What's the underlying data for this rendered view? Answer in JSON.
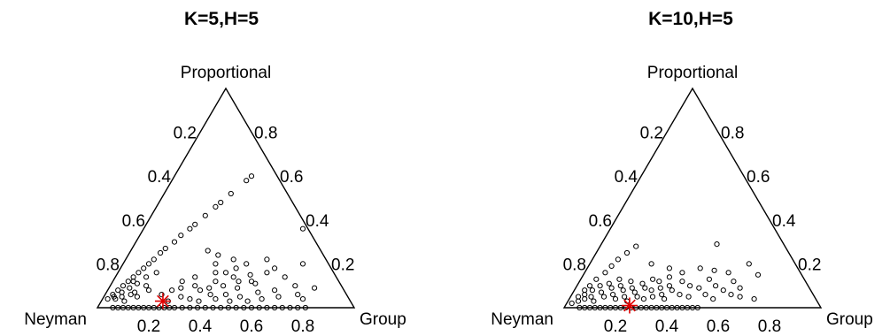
{
  "chart_data": [
    {
      "type": "scatter",
      "subtype": "ternary",
      "title": "K=5,H=5",
      "vertices": {
        "left": "Neyman",
        "top": "Proportional",
        "right": "Group"
      },
      "left_edge_ticks": [
        "0.2",
        "0.4",
        "0.6",
        "0.8"
      ],
      "right_edge_ticks": [
        "0.8",
        "0.6",
        "0.4",
        "0.2"
      ],
      "bottom_edge_ticks": [
        "0.2",
        "0.4",
        "0.6",
        "0.8"
      ],
      "points": [
        [
          0.02,
          0.04
        ],
        [
          0.03,
          0.06
        ],
        [
          0.04,
          0.08
        ],
        [
          0.05,
          0.1
        ],
        [
          0.06,
          0.12
        ],
        [
          0.07,
          0.14
        ],
        [
          0.08,
          0.16
        ],
        [
          0.09,
          0.18
        ],
        [
          0.1,
          0.2
        ],
        [
          0.11,
          0.22
        ],
        [
          0.12,
          0.25
        ],
        [
          0.13,
          0.27
        ],
        [
          0.15,
          0.3
        ],
        [
          0.16,
          0.33
        ],
        [
          0.18,
          0.36
        ],
        [
          0.19,
          0.38
        ],
        [
          0.21,
          0.42
        ],
        [
          0.23,
          0.46
        ],
        [
          0.24,
          0.48
        ],
        [
          0.26,
          0.52
        ],
        [
          0.29,
          0.58
        ],
        [
          0.3,
          0.6
        ],
        [
          0.04,
          0.05
        ],
        [
          0.05,
          0.04
        ],
        [
          0.06,
          0.07
        ],
        [
          0.07,
          0.05
        ],
        [
          0.08,
          0.09
        ],
        [
          0.09,
          0.03
        ],
        [
          0.1,
          0.11
        ],
        [
          0.11,
          0.07
        ],
        [
          0.12,
          0.14
        ],
        [
          0.13,
          0.05
        ],
        [
          0.14,
          0.1
        ],
        [
          0.15,
          0.16
        ],
        [
          0.16,
          0.08
        ],
        [
          0.08,
          0.12
        ],
        [
          0.1,
          0.06
        ],
        [
          0.06,
          0.0
        ],
        [
          0.08,
          0.0
        ],
        [
          0.1,
          0.0
        ],
        [
          0.12,
          0.0
        ],
        [
          0.14,
          0.0
        ],
        [
          0.16,
          0.0
        ],
        [
          0.18,
          0.0
        ],
        [
          0.2,
          0.0
        ],
        [
          0.22,
          0.0
        ],
        [
          0.24,
          0.0
        ],
        [
          0.26,
          0.0
        ],
        [
          0.28,
          0.0
        ],
        [
          0.3,
          0.0
        ],
        [
          0.33,
          0.0
        ],
        [
          0.36,
          0.0
        ],
        [
          0.39,
          0.0
        ],
        [
          0.42,
          0.0
        ],
        [
          0.45,
          0.0
        ],
        [
          0.48,
          0.0
        ],
        [
          0.51,
          0.0
        ],
        [
          0.54,
          0.0
        ],
        [
          0.57,
          0.0
        ],
        [
          0.6,
          0.0
        ],
        [
          0.63,
          0.0
        ],
        [
          0.66,
          0.0
        ],
        [
          0.69,
          0.0
        ],
        [
          0.72,
          0.0
        ],
        [
          0.75,
          0.0
        ],
        [
          0.78,
          0.0
        ],
        [
          0.81,
          0.0
        ],
        [
          0.3,
          0.26
        ],
        [
          0.35,
          0.24
        ],
        [
          0.42,
          0.22
        ],
        [
          0.48,
          0.2
        ],
        [
          0.62,
          0.36
        ],
        [
          0.7,
          0.2
        ],
        [
          0.38,
          0.16
        ],
        [
          0.45,
          0.18
        ],
        [
          0.52,
          0.15
        ],
        [
          0.55,
          0.22
        ],
        [
          0.6,
          0.18
        ],
        [
          0.27,
          0.12
        ],
        [
          0.33,
          0.1
        ],
        [
          0.36,
          0.08
        ],
        [
          0.4,
          0.12
        ],
        [
          0.44,
          0.1
        ],
        [
          0.47,
          0.06
        ],
        [
          0.5,
          0.09
        ],
        [
          0.53,
          0.05
        ],
        [
          0.56,
          0.11
        ],
        [
          0.59,
          0.07
        ],
        [
          0.62,
          0.04
        ],
        [
          0.65,
          0.08
        ],
        [
          0.68,
          0.05
        ],
        [
          0.72,
          0.1
        ],
        [
          0.75,
          0.06
        ],
        [
          0.78,
          0.04
        ],
        [
          0.8,
          0.09
        ],
        [
          0.3,
          0.05
        ],
        [
          0.34,
          0.04
        ],
        [
          0.38,
          0.03
        ],
        [
          0.41,
          0.06
        ],
        [
          0.5,
          0.03
        ],
        [
          0.57,
          0.03
        ],
        [
          0.22,
          0.06
        ],
        [
          0.25,
          0.08
        ],
        [
          0.28,
          0.09
        ],
        [
          0.31,
          0.14
        ],
        [
          0.46,
          0.14
        ],
        [
          0.54,
          0.12
        ],
        [
          0.36,
          0.2
        ],
        [
          0.42,
          0.16
        ],
        [
          0.66,
          0.14
        ],
        [
          0.58,
          0.16
        ],
        [
          0.49,
          0.12
        ],
        [
          0.39,
          0.09
        ],
        [
          0.26,
          0.03
        ],
        [
          0.44,
          0.04
        ]
      ],
      "star": [
        0.24,
        0.03
      ],
      "star_color": "#e00000"
    },
    {
      "type": "scatter",
      "subtype": "ternary",
      "title": "K=10,H=5",
      "vertices": {
        "left": "Neyman",
        "top": "Proportional",
        "right": "Group"
      },
      "left_edge_ticks": [
        "0.2",
        "0.4",
        "0.6",
        "0.8"
      ],
      "right_edge_ticks": [
        "0.8",
        "0.6",
        "0.4",
        "0.2"
      ],
      "bottom_edge_ticks": [
        "0.2",
        "0.4",
        "0.6",
        "0.8"
      ],
      "points": [
        [
          0.02,
          0.02
        ],
        [
          0.03,
          0.05
        ],
        [
          0.04,
          0.08
        ],
        [
          0.05,
          0.1
        ],
        [
          0.06,
          0.13
        ],
        [
          0.08,
          0.16
        ],
        [
          0.09,
          0.19
        ],
        [
          0.1,
          0.22
        ],
        [
          0.12,
          0.25
        ],
        [
          0.14,
          0.28
        ],
        [
          0.04,
          0.03
        ],
        [
          0.05,
          0.06
        ],
        [
          0.06,
          0.04
        ],
        [
          0.07,
          0.08
        ],
        [
          0.08,
          0.05
        ],
        [
          0.09,
          0.1
        ],
        [
          0.1,
          0.03
        ],
        [
          0.11,
          0.07
        ],
        [
          0.12,
          0.11
        ],
        [
          0.13,
          0.05
        ],
        [
          0.14,
          0.09
        ],
        [
          0.15,
          0.13
        ],
        [
          0.16,
          0.06
        ],
        [
          0.17,
          0.1
        ],
        [
          0.18,
          0.04
        ],
        [
          0.19,
          0.08
        ],
        [
          0.2,
          0.12
        ],
        [
          0.21,
          0.05
        ],
        [
          0.22,
          0.09
        ],
        [
          0.23,
          0.03
        ],
        [
          0.24,
          0.07
        ],
        [
          0.25,
          0.11
        ],
        [
          0.26,
          0.05
        ],
        [
          0.27,
          0.09
        ],
        [
          0.28,
          0.13
        ],
        [
          0.29,
          0.04
        ],
        [
          0.3,
          0.08
        ],
        [
          0.31,
          0.12
        ],
        [
          0.32,
          0.05
        ],
        [
          0.33,
          0.09
        ],
        [
          0.34,
          0.14
        ],
        [
          0.35,
          0.06
        ],
        [
          0.36,
          0.1
        ],
        [
          0.37,
          0.04
        ],
        [
          0.38,
          0.08
        ],
        [
          0.4,
          0.12
        ],
        [
          0.42,
          0.06
        ],
        [
          0.44,
          0.1
        ],
        [
          0.46,
          0.05
        ],
        [
          0.48,
          0.09
        ],
        [
          0.5,
          0.13
        ],
        [
          0.52,
          0.06
        ],
        [
          0.54,
          0.1
        ],
        [
          0.56,
          0.04
        ],
        [
          0.58,
          0.08
        ],
        [
          0.6,
          0.12
        ],
        [
          0.62,
          0.06
        ],
        [
          0.64,
          0.09
        ],
        [
          0.66,
          0.05
        ],
        [
          0.68,
          0.15
        ],
        [
          0.72,
          0.04
        ],
        [
          0.45,
          0.29
        ],
        [
          0.24,
          0.2
        ],
        [
          0.32,
          0.18
        ],
        [
          0.38,
          0.16
        ],
        [
          0.44,
          0.18
        ],
        [
          0.5,
          0.17
        ],
        [
          0.56,
          0.16
        ],
        [
          0.62,
          0.2
        ],
        [
          0.06,
          0.0
        ],
        [
          0.08,
          0.0
        ],
        [
          0.1,
          0.0
        ],
        [
          0.12,
          0.0
        ],
        [
          0.14,
          0.0
        ],
        [
          0.16,
          0.0
        ],
        [
          0.18,
          0.0
        ],
        [
          0.2,
          0.0
        ],
        [
          0.22,
          0.0
        ],
        [
          0.24,
          0.0
        ],
        [
          0.26,
          0.0
        ],
        [
          0.28,
          0.0
        ],
        [
          0.3,
          0.0
        ],
        [
          0.32,
          0.0
        ],
        [
          0.34,
          0.0
        ],
        [
          0.36,
          0.0
        ],
        [
          0.38,
          0.0
        ],
        [
          0.4,
          0.0
        ],
        [
          0.42,
          0.0
        ],
        [
          0.44,
          0.0
        ],
        [
          0.46,
          0.0
        ],
        [
          0.48,
          0.0
        ],
        [
          0.5,
          0.0
        ],
        [
          0.52,
          0.0
        ]
      ],
      "star": [
        0.25,
        0.01
      ],
      "star_color": "#e00000"
    }
  ]
}
